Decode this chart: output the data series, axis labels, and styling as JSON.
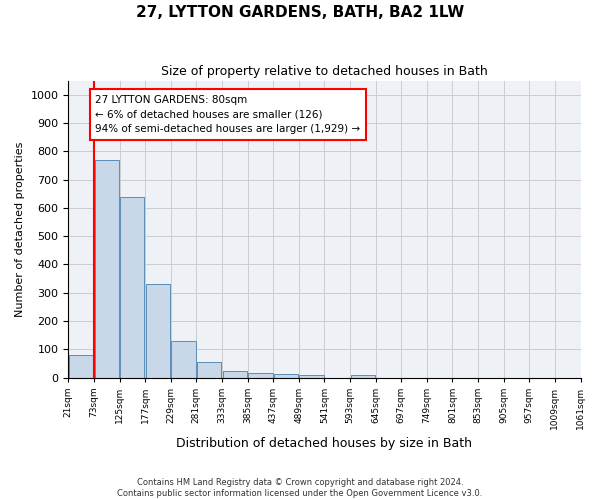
{
  "title": "27, LYTTON GARDENS, BATH, BA2 1LW",
  "subtitle": "Size of property relative to detached houses in Bath",
  "xlabel": "Distribution of detached houses by size in Bath",
  "ylabel": "Number of detached properties",
  "footer_line1": "Contains HM Land Registry data © Crown copyright and database right 2024.",
  "footer_line2": "Contains public sector information licensed under the Open Government Licence v3.0.",
  "bar_values": [
    80,
    770,
    640,
    330,
    130,
    55,
    22,
    17,
    12,
    8,
    0,
    8,
    0,
    0,
    0,
    0,
    0,
    0,
    0,
    0
  ],
  "bin_labels": [
    "21sqm",
    "73sqm",
    "125sqm",
    "177sqm",
    "229sqm",
    "281sqm",
    "333sqm",
    "385sqm",
    "437sqm",
    "489sqm",
    "541sqm",
    "593sqm",
    "645sqm",
    "697sqm",
    "749sqm",
    "801sqm",
    "853sqm",
    "905sqm",
    "957sqm",
    "1009sqm"
  ],
  "extra_tick": "1061sqm",
  "bar_color": "#c8d8e8",
  "bar_edge_color": "#5b8db8",
  "property_sqm": 80,
  "annotation_text": "27 LYTTON GARDENS: 80sqm\n← 6% of detached houses are smaller (126)\n94% of semi-detached houses are larger (1,929) →",
  "ylim": [
    0,
    1050
  ],
  "yticks": [
    0,
    100,
    200,
    300,
    400,
    500,
    600,
    700,
    800,
    900,
    1000
  ],
  "grid_color": "#cccccc",
  "bg_color": "#ffffff",
  "plot_bg_color": "#eef2f7"
}
